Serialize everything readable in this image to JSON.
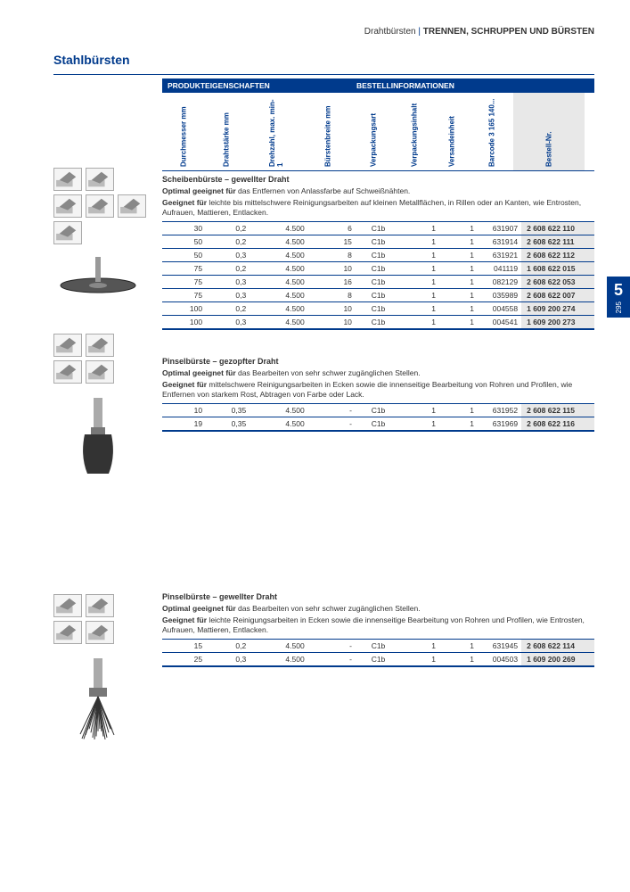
{
  "breadcrumb": {
    "cat": "Drahtbürsten",
    "sep": "|",
    "main": "TRENNEN, SCHRUPPEN UND BÜRSTEN"
  },
  "title": "Stahlbürsten",
  "headers": {
    "prod": "PRODUKTEIGENSCHAFTEN",
    "ord": "BESTELLINFORMATIONEN",
    "cols": [
      "Durchmesser mm",
      "Drahtstärke mm",
      "Drehzahl, max. min-1",
      "Bürstenbreite mm",
      "Verpackungsart",
      "Verpackungsinhalt",
      "Versandeinheit",
      "Barcode 3 165 140...",
      "Bestell-Nr."
    ]
  },
  "tab": {
    "chapter": "5",
    "page": "295"
  },
  "sections": [
    {
      "title": "Scheibenbürste – gewellter Draht",
      "optimal_label": "Optimal geeignet für",
      "optimal": " das Entfernen von Anlassfarbe auf Schweißnähten.",
      "geeignet_label": "Geeignet für",
      "geeignet": " leichte bis mittelschwere Reinigungsarbeiten auf kleinen Metallflächen, in Rillen oder an Kanten, wie Entrosten, Aufrauen, Mattieren, Entlacken.",
      "rows": [
        [
          "30",
          "0,2",
          "4.500",
          "6",
          "C1b",
          "1",
          "1",
          "631907",
          "2 608 622 110"
        ],
        [
          "50",
          "0,2",
          "4.500",
          "15",
          "C1b",
          "1",
          "1",
          "631914",
          "2 608 622 111"
        ],
        [
          "50",
          "0,3",
          "4.500",
          "8",
          "C1b",
          "1",
          "1",
          "631921",
          "2 608 622 112"
        ],
        [
          "75",
          "0,2",
          "4.500",
          "10",
          "C1b",
          "1",
          "1",
          "041119",
          "1 608 622 015"
        ],
        [
          "75",
          "0,3",
          "4.500",
          "16",
          "C1b",
          "1",
          "1",
          "082129",
          "2 608 622 053"
        ],
        [
          "75",
          "0,3",
          "4.500",
          "8",
          "C1b",
          "1",
          "1",
          "035989",
          "2 608 622 007"
        ],
        [
          "100",
          "0,2",
          "4.500",
          "10",
          "C1b",
          "1",
          "1",
          "004558",
          "1 609 200 274"
        ],
        [
          "100",
          "0,3",
          "4.500",
          "10",
          "C1b",
          "1",
          "1",
          "004541",
          "1 609 200 273"
        ]
      ]
    },
    {
      "title": "Pinselbürste – gezopfter Draht",
      "optimal_label": "Optimal geeignet für",
      "optimal": " das Bearbeiten von sehr schwer zugänglichen Stellen.",
      "geeignet_label": "Geeignet für",
      "geeignet": " mittelschwere Reinigungsarbeiten in Ecken sowie die innenseitige Bearbeitung von Rohren und Profilen, wie Entfernen von starkem Rost, Abtragen von Farbe oder Lack.",
      "rows": [
        [
          "10",
          "0,35",
          "4.500",
          "-",
          "C1b",
          "1",
          "1",
          "631952",
          "2 608 622 115"
        ],
        [
          "19",
          "0,35",
          "4.500",
          "-",
          "C1b",
          "1",
          "1",
          "631969",
          "2 608 622 116"
        ]
      ]
    },
    {
      "title": "Pinselbürste – gewellter Draht",
      "optimal_label": "Optimal geeignet für",
      "optimal": " das Bearbeiten von sehr schwer zugänglichen Stellen.",
      "geeignet_label": "Geeignet für",
      "geeignet": " leichte Reinigungsarbeiten in Ecken sowie die innenseitige Bearbeitung von Rohren und Profilen, wie Entrosten, Aufrauen, Mattieren, Entlacken.",
      "rows": [
        [
          "15",
          "0,2",
          "4.500",
          "-",
          "C1b",
          "1",
          "1",
          "631945",
          "2 608 622 114"
        ],
        [
          "25",
          "0,3",
          "4.500",
          "-",
          "C1b",
          "1",
          "1",
          "004503",
          "1 609 200 269"
        ]
      ]
    }
  ]
}
